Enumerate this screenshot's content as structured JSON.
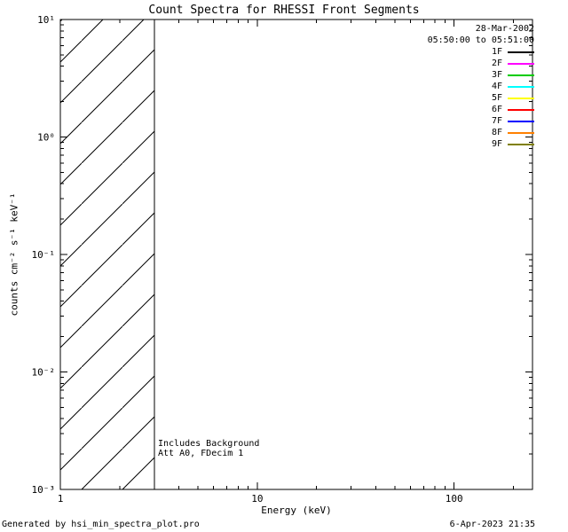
{
  "chart_data": {
    "type": "line",
    "title": "Count Spectra for RHESSI Front Segments",
    "xlabel": "Energy (keV)",
    "ylabel": "counts cm⁻² s⁻¹ keV⁻¹",
    "xscale": "log",
    "yscale": "log",
    "xlim": [
      1,
      250
    ],
    "ylim": [
      0.001,
      10
    ],
    "x_major_ticks": [
      1,
      10,
      100
    ],
    "x_tick_labels": [
      "1",
      "10",
      "100"
    ],
    "y_major_ticks": [
      0.001,
      0.01,
      0.1,
      1,
      10
    ],
    "y_tick_labels": [
      "10⁻³",
      "10⁻²",
      "10⁻¹",
      "10⁰",
      "10¹"
    ],
    "grid": false,
    "legend_position": "top-right",
    "date": "28-Mar-2002",
    "time_range": "05:50:00 to 05:51:00",
    "series": [
      {
        "name": "1F",
        "color": "#000000",
        "values": []
      },
      {
        "name": "2F",
        "color": "#ff00ff",
        "values": []
      },
      {
        "name": "3F",
        "color": "#00cc00",
        "values": []
      },
      {
        "name": "4F",
        "color": "#00ffff",
        "values": []
      },
      {
        "name": "5F",
        "color": "#ffff00",
        "values": []
      },
      {
        "name": "6F",
        "color": "#ff0000",
        "values": []
      },
      {
        "name": "7F",
        "color": "#0000ff",
        "values": []
      },
      {
        "name": "8F",
        "color": "#ff8000",
        "values": []
      },
      {
        "name": "9F",
        "color": "#808000",
        "values": []
      }
    ],
    "hatched_region": {
      "x_start": 1,
      "x_end": 3,
      "style": "diagonal-hatch"
    },
    "annotations": [
      "Includes Background",
      "Att A0, FDecim 1"
    ]
  },
  "footer": {
    "left": "Generated by hsi_min_spectra_plot.pro",
    "right": "6-Apr-2023 21:35"
  }
}
